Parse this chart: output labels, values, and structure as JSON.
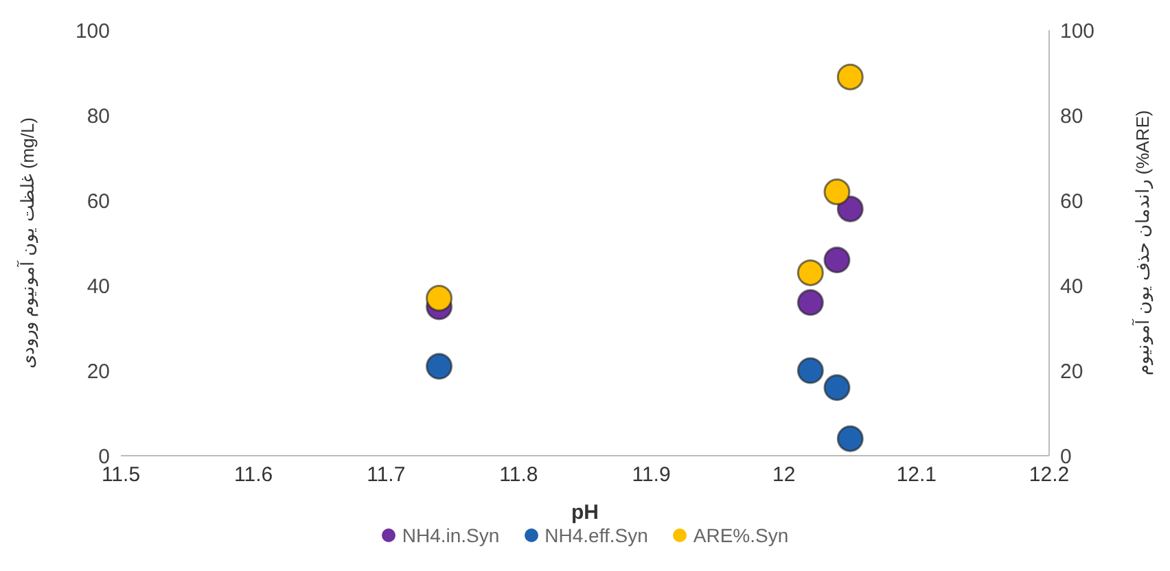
{
  "chart_data": {
    "type": "scatter",
    "xlabel": "pH",
    "ylabel": "غلظت یون آمونیوم ورودی (mg/L)",
    "y2label": "راندمان حذف یون آمونیوم (%ARE)",
    "x": [
      11.74,
      12.02,
      12.04,
      12.05
    ],
    "series": [
      {
        "name": "NH4.in.Syn",
        "color": "#7030a0",
        "values": [
          35,
          36,
          46,
          58
        ]
      },
      {
        "name": "NH4.eff.Syn",
        "color": "#1f63b0",
        "values": [
          21,
          20,
          16,
          4
        ]
      },
      {
        "name": "ARE%.Syn",
        "color": "#ffc000",
        "values": [
          37,
          43,
          62,
          89
        ],
        "axis": "y2"
      }
    ],
    "xlim": [
      11.5,
      12.2
    ],
    "xticks": [
      11.5,
      11.6,
      11.7,
      11.8,
      11.9,
      12,
      12.1,
      12.2
    ],
    "ylim": [
      0,
      100
    ],
    "yticks": [
      0,
      20,
      40,
      60,
      80,
      100
    ],
    "y2lim": [
      0,
      100
    ],
    "y2ticks": [
      0,
      20,
      40,
      60,
      80,
      100
    ],
    "grid": false,
    "legend": "bottom",
    "marker": "circle"
  }
}
